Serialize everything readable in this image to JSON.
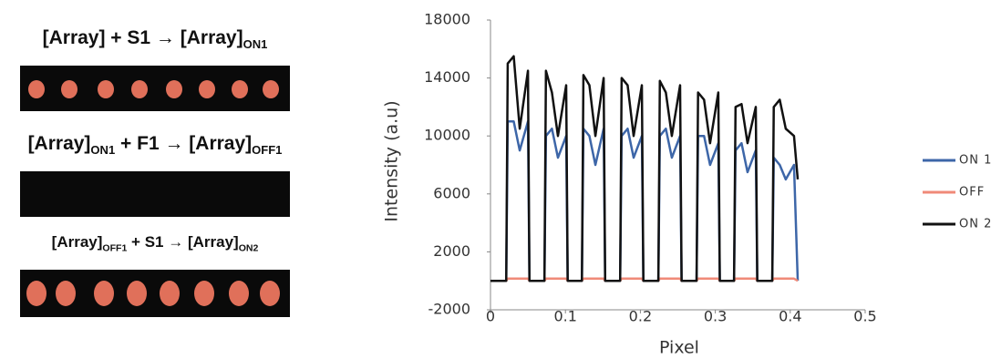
{
  "panels": [
    {
      "label": [
        {
          "text": "[Array] + S1 → [Array]"
        },
        {
          "sub": "ON1"
        }
      ]
    },
    {
      "label": [
        {
          "text": "[Array]"
        },
        {
          "sub": "ON1"
        },
        {
          "text": " + F1 → [Array]"
        },
        {
          "sub": "OFF1"
        }
      ]
    },
    {
      "label": [
        {
          "text": "[Array]"
        },
        {
          "sub": "OFF1"
        },
        {
          "text": " + S1 → [Array]"
        },
        {
          "sub": "ON2"
        }
      ]
    }
  ],
  "chart_data": {
    "type": "line",
    "xlabel": "Pixel",
    "ylabel": "Intensity (a.u)",
    "x": [
      0,
      0.021,
      0.023,
      0.031,
      0.039,
      0.05,
      0.052,
      0.072,
      0.074,
      0.082,
      0.09,
      0.101,
      0.103,
      0.122,
      0.124,
      0.132,
      0.14,
      0.151,
      0.153,
      0.173,
      0.175,
      0.183,
      0.191,
      0.202,
      0.204,
      0.224,
      0.226,
      0.234,
      0.242,
      0.253,
      0.255,
      0.275,
      0.277,
      0.285,
      0.293,
      0.304,
      0.306,
      0.325,
      0.327,
      0.335,
      0.343,
      0.354,
      0.356,
      0.376,
      0.378,
      0.386,
      0.394,
      0.405,
      0.41
    ],
    "series": [
      {
        "name": "ON 1",
        "color": "#3d66a8",
        "values": [
          0,
          0,
          11000,
          11000,
          9000,
          11000,
          0,
          0,
          10000,
          10500,
          8500,
          10000,
          0,
          0,
          10500,
          10000,
          8000,
          10500,
          0,
          0,
          10000,
          10500,
          8500,
          10000,
          0,
          0,
          10000,
          10500,
          8500,
          10000,
          0,
          0,
          10000,
          10000,
          8000,
          9500,
          0,
          0,
          9000,
          9500,
          7500,
          9000,
          0,
          0,
          8500,
          8000,
          7000,
          8000,
          0
        ]
      },
      {
        "name": "OFF",
        "color": "#f08a78",
        "values": [
          0,
          0,
          150,
          150,
          150,
          150,
          0,
          0,
          150,
          150,
          150,
          150,
          0,
          0,
          150,
          150,
          150,
          150,
          0,
          0,
          150,
          150,
          150,
          150,
          0,
          0,
          150,
          150,
          150,
          150,
          0,
          0,
          150,
          150,
          150,
          150,
          0,
          0,
          150,
          150,
          150,
          150,
          0,
          0,
          150,
          150,
          150,
          150,
          0
        ]
      },
      {
        "name": "ON 2",
        "color": "#111111",
        "values": [
          0,
          0,
          15000,
          15500,
          10500,
          14500,
          0,
          0,
          14500,
          13000,
          10000,
          13500,
          0,
          0,
          14200,
          13500,
          10000,
          14000,
          0,
          0,
          14000,
          13500,
          10000,
          13500,
          0,
          0,
          13800,
          13000,
          10000,
          13500,
          0,
          0,
          13000,
          12500,
          9500,
          13000,
          0,
          0,
          12000,
          12200,
          9500,
          12000,
          0,
          0,
          12000,
          12500,
          10500,
          10000,
          7000
        ]
      }
    ],
    "xlim": [
      0,
      0.5
    ],
    "xticks": [
      0,
      0.1,
      0.2,
      0.3,
      0.4,
      0.5
    ],
    "ylim": [
      -2000,
      18000
    ],
    "yticks": [
      -2000,
      2000,
      6000,
      10000,
      14000,
      18000
    ],
    "legend": "right"
  }
}
